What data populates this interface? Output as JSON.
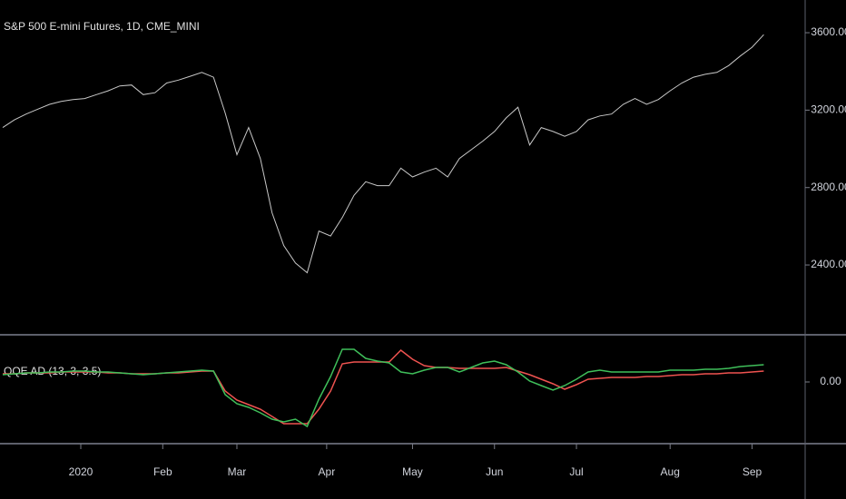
{
  "chart_data": [
    {
      "type": "line",
      "title": "S&P 500 E-mini Futures, 1D, CME_MINI",
      "x": [
        0,
        3,
        6,
        9,
        12,
        15,
        18,
        21,
        24,
        27,
        30,
        33,
        36,
        39,
        42,
        45,
        48,
        51,
        54,
        57,
        60,
        63,
        66,
        69,
        72,
        75,
        78,
        81,
        84,
        87,
        90,
        93,
        96,
        99,
        102,
        105,
        108,
        111,
        114,
        117,
        120,
        123,
        126,
        129,
        132,
        135,
        138,
        141,
        144,
        147,
        150,
        153,
        156,
        159,
        162,
        165,
        168,
        171,
        174,
        177,
        180,
        183,
        186,
        189,
        192,
        195
      ],
      "xlim": [
        -0.7,
        205.6
      ],
      "series": [
        {
          "color": "#c8c8c8",
          "values": [
            3110,
            3150,
            3180,
            3205,
            3230,
            3245,
            3255,
            3260,
            3280,
            3300,
            3325,
            3330,
            3280,
            3290,
            3340,
            3355,
            3375,
            3395,
            3370,
            3185,
            2970,
            3110,
            2950,
            2670,
            2500,
            2410,
            2360,
            2575,
            2550,
            2645,
            2760,
            2830,
            2810,
            2810,
            2900,
            2855,
            2880,
            2900,
            2855,
            2950,
            2995,
            3040,
            3090,
            3160,
            3215,
            3020,
            3110,
            3090,
            3065,
            3090,
            3150,
            3170,
            3180,
            3230,
            3260,
            3230,
            3255,
            3300,
            3340,
            3370,
            3385,
            3395,
            3430,
            3480,
            3525,
            3590
          ]
        }
      ],
      "ylim": [
        2044,
        3769
      ],
      "yticks": [
        {
          "value": 2400,
          "label": "2400.00"
        },
        {
          "value": 2800,
          "label": "2800.00"
        },
        {
          "value": 3200,
          "label": "3200.00"
        },
        {
          "value": 3600,
          "label": "3600.00"
        }
      ]
    },
    {
      "type": "line",
      "title": "QQE AD (13, 3, 3.5)",
      "x": [
        0,
        3,
        6,
        9,
        12,
        15,
        18,
        21,
        24,
        27,
        30,
        33,
        36,
        39,
        42,
        45,
        48,
        51,
        54,
        57,
        60,
        63,
        66,
        69,
        72,
        75,
        78,
        81,
        84,
        87,
        90,
        93,
        96,
        99,
        102,
        105,
        108,
        111,
        114,
        117,
        120,
        123,
        126,
        129,
        132,
        135,
        138,
        141,
        144,
        147,
        150,
        153,
        156,
        159,
        162,
        165,
        168,
        171,
        174,
        177,
        180,
        183,
        186,
        189,
        192,
        195
      ],
      "xlim": [
        -0.7,
        205.6
      ],
      "series": [
        {
          "color": "#ef5350",
          "values": [
            9,
            9,
            10,
            10,
            10,
            11,
            11,
            11,
            11,
            10,
            10,
            9,
            9,
            9,
            10,
            10,
            11,
            12,
            12,
            -10,
            -20,
            -25,
            -30,
            -38,
            -46,
            -46,
            -46,
            -30,
            -10,
            20,
            22,
            22,
            22,
            22,
            35,
            25,
            18,
            16,
            16,
            15,
            15,
            15,
            15,
            16,
            12,
            8,
            3,
            -2,
            -8,
            -3,
            3,
            4,
            5,
            5,
            5,
            6,
            6,
            7,
            8,
            8,
            9,
            9,
            10,
            10,
            11,
            12
          ]
        },
        {
          "color": "#3fbf5a",
          "values": [
            8,
            9,
            10,
            10,
            11,
            11,
            12,
            12,
            11,
            11,
            10,
            9,
            8,
            9,
            10,
            11,
            12,
            13,
            12,
            -14,
            -24,
            -28,
            -34,
            -41,
            -44,
            -41,
            -49,
            -19,
            6,
            36,
            36,
            26,
            23,
            21,
            11,
            9,
            13,
            16,
            16,
            11,
            16,
            21,
            23,
            19,
            11,
            1,
            -4,
            -9,
            -4,
            3,
            11,
            13,
            11,
            11,
            11,
            11,
            11,
            13,
            13,
            13,
            14,
            14,
            15,
            17,
            18,
            19
          ]
        }
      ],
      "ylim": [
        -67,
        51
      ],
      "yticks": [
        {
          "value": 0,
          "label": "0.00"
        }
      ],
      "xticks": [
        {
          "value": 20,
          "label": "2020"
        },
        {
          "value": 41,
          "label": "Feb"
        },
        {
          "value": 60,
          "label": "Mar"
        },
        {
          "value": 83,
          "label": "Apr"
        },
        {
          "value": 105,
          "label": "May"
        },
        {
          "value": 126,
          "label": "Jun"
        },
        {
          "value": 147,
          "label": "Jul"
        },
        {
          "value": 171,
          "label": "Aug"
        },
        {
          "value": 192,
          "label": "Sep"
        }
      ]
    }
  ]
}
